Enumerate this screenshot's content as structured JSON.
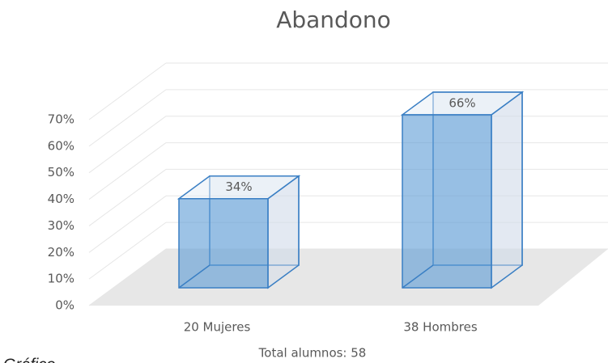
{
  "chart_data": {
    "type": "bar3d",
    "title": "Abandono",
    "categories": [
      "20 Mujeres",
      "38 Hombres"
    ],
    "values": [
      34,
      66
    ],
    "value_labels": [
      "34%",
      "66%"
    ],
    "color": "#5b9bd5",
    "x_label": "Total alumnos: 58",
    "caption": "Gráfico",
    "ylim": [
      0,
      70
    ],
    "yticks": [
      {
        "value": 0,
        "label": "0%"
      },
      {
        "value": 10,
        "label": "10%"
      },
      {
        "value": 20,
        "label": "20%"
      },
      {
        "value": 30,
        "label": "30%"
      },
      {
        "value": 40,
        "label": "40%"
      },
      {
        "value": 50,
        "label": "50%"
      },
      {
        "value": 60,
        "label": "60%"
      },
      {
        "value": 70,
        "label": "70%"
      }
    ],
    "grid": true
  }
}
